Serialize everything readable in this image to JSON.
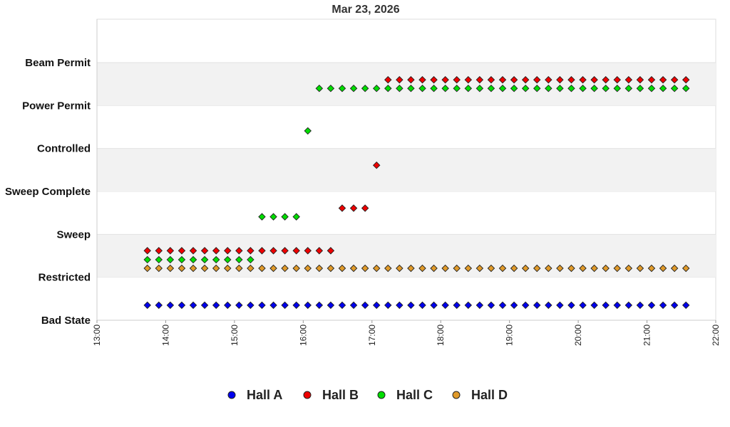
{
  "chart_data": {
    "type": "scatter",
    "title": "Mar 23, 2026",
    "xlabel": "",
    "ylabel": "",
    "x_unit": "time of day",
    "xlim": [
      "13:00",
      "22:00"
    ],
    "x_ticks": [
      "13:00",
      "14:00",
      "15:00",
      "16:00",
      "17:00",
      "18:00",
      "19:00",
      "20:00",
      "21:00",
      "22:00"
    ],
    "y_categories": [
      "Bad State",
      "Restricted",
      "Sweep",
      "Sweep Complete",
      "Controlled",
      "Power Permit",
      "Beam Permit"
    ],
    "band_shading": "alternating light grey / white bands between category levels",
    "marker": "diamond",
    "grid": false,
    "legend_position": "bottom-center",
    "series": [
      {
        "name": "Hall A",
        "color": "#0000ee",
        "points": [
          {
            "from": "13:44",
            "to": "21:34",
            "every_min": 10,
            "state_level": 0.35
          }
        ]
      },
      {
        "name": "Hall B",
        "color": "#ee0000",
        "points": [
          {
            "from": "13:44",
            "to": "16:24",
            "every_min": 10,
            "state_level": 1.62
          },
          {
            "from": "16:34",
            "to": "16:54",
            "every_min": 10,
            "state_level": 2.61
          },
          {
            "from": "17:04",
            "to": "17:04",
            "every_min": 10,
            "state_level": 3.61
          },
          {
            "from": "17:14",
            "to": "21:34",
            "every_min": 10,
            "state_level": 5.6
          }
        ]
      },
      {
        "name": "Hall C",
        "color": "#00dd00",
        "points": [
          {
            "from": "13:44",
            "to": "15:14",
            "every_min": 10,
            "state_level": 1.41
          },
          {
            "from": "15:24",
            "to": "15:54",
            "every_min": 10,
            "state_level": 2.41
          },
          {
            "from": "16:04",
            "to": "16:04",
            "every_min": 10,
            "state_level": 4.41
          },
          {
            "from": "16:14",
            "to": "21:34",
            "every_min": 10,
            "state_level": 5.4
          }
        ]
      },
      {
        "name": "Hall D",
        "color": "#e09a2a",
        "points": [
          {
            "from": "13:44",
            "to": "21:34",
            "every_min": 10,
            "state_level": 1.21
          }
        ]
      }
    ]
  }
}
